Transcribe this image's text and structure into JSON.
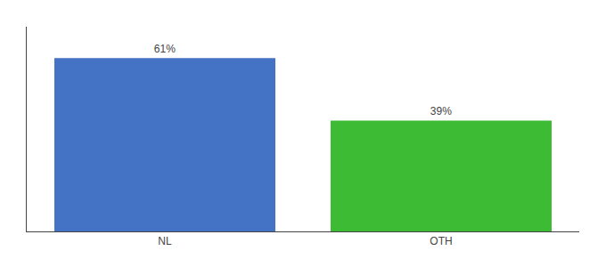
{
  "chart_data": {
    "type": "bar",
    "categories": [
      "NL",
      "OTH"
    ],
    "values": [
      61,
      39
    ],
    "value_labels": [
      "61%",
      "39%"
    ],
    "colors": [
      "#4472c4",
      "#3dbb35"
    ],
    "ylim": [
      0,
      72
    ],
    "grid": false,
    "data_labels": true,
    "tick_labels": "x"
  }
}
